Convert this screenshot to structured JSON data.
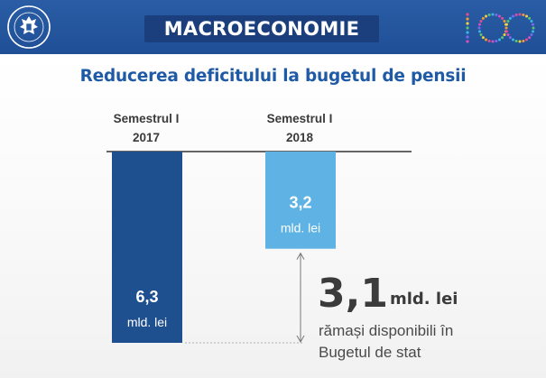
{
  "header": {
    "title": "MACROECONOMIE",
    "seal_text": "GUVERNUL ROMÂNIEI",
    "centenary_mark": "100",
    "background_color": "#2a5da6",
    "title_box_color": "#1b3f7c",
    "seal_icon": "government-seal-icon",
    "centenary_icon": "centenary-logo-icon"
  },
  "subtitle": "Reducerea deficitului la bugetul de pensii",
  "chart_data": {
    "type": "bar",
    "categories": [
      "Semestrul I 2017",
      "Semestrul I 2018"
    ],
    "category_lines": [
      [
        "Semestrul I",
        "2017"
      ],
      [
        "Semestrul I",
        "2018"
      ]
    ],
    "values": [
      6.3,
      3.2
    ],
    "value_labels": [
      "6,3",
      "3,2"
    ],
    "unit": "mld. lei",
    "colors": [
      "#1e4f8f",
      "#5eb3e4"
    ],
    "direction": "down",
    "difference": {
      "value": 3.1,
      "label": "3,1",
      "unit": "mld. lei",
      "note_lines": [
        "rămași disponibili în",
        "Bugetul de stat"
      ]
    },
    "title": "",
    "xlabel": "",
    "ylabel": "",
    "ylim": [
      0,
      6.3
    ],
    "grid": false,
    "legend": "none"
  }
}
